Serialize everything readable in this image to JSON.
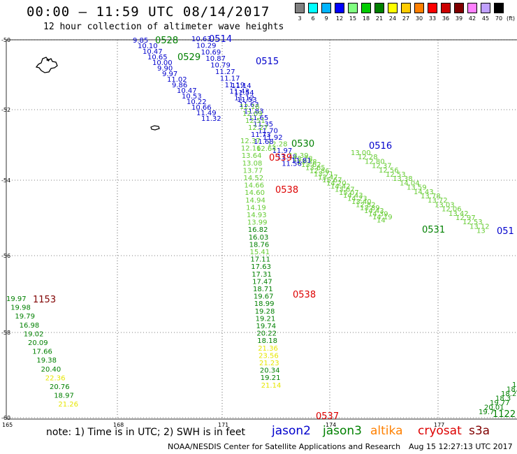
{
  "header": {
    "title": "00:00 – 11:59 UTC 08/14/2017",
    "subtitle": "12 hour collection of altimeter wave heights"
  },
  "colorbar": {
    "unit_label": "(ft)",
    "entries": [
      {
        "label": "3",
        "color": "#808080"
      },
      {
        "label": "6",
        "color": "#00ffff"
      },
      {
        "label": "9",
        "color": "#00b4ff"
      },
      {
        "label": "12",
        "color": "#0000ff"
      },
      {
        "label": "15",
        "color": "#80ff80"
      },
      {
        "label": "18",
        "color": "#00cc00"
      },
      {
        "label": "21",
        "color": "#008000"
      },
      {
        "label": "24",
        "color": "#ffff00"
      },
      {
        "label": "27",
        "color": "#ffcc00"
      },
      {
        "label": "30",
        "color": "#ff8000"
      },
      {
        "label": "33",
        "color": "#ff0000"
      },
      {
        "label": "36",
        "color": "#cc0000"
      },
      {
        "label": "39",
        "color": "#800000"
      },
      {
        "label": "42",
        "color": "#ff80ff"
      },
      {
        "label": "45",
        "color": "#c0a0ff"
      },
      {
        "label": "70",
        "color": "#000000"
      }
    ]
  },
  "axes": {
    "lat_labels": [
      "-50",
      "-52",
      "-54",
      "-56",
      "-58",
      "-60"
    ],
    "lon_labels": [
      "165",
      "168",
      "171",
      "174",
      "177"
    ]
  },
  "tracks": [
    {
      "satellite": "jason2",
      "time_label": "0514",
      "label_color": "#0000cc",
      "values": [
        {
          "v": "10.63",
          "c": "#0000cc"
        },
        {
          "v": "10.29",
          "c": "#0000cc"
        },
        {
          "v": "10.69",
          "c": "#0000cc"
        },
        {
          "v": "10.87",
          "c": "#0000cc"
        },
        {
          "v": "10.79",
          "c": "#0000cc"
        },
        {
          "v": "11.27",
          "c": "#0000cc"
        },
        {
          "v": "11.17",
          "c": "#0000cc"
        },
        {
          "v": "11.19",
          "c": "#0000cc"
        },
        {
          "v": "11.43",
          "c": "#0000cc"
        },
        {
          "v": "11.12",
          "c": "#0000cc"
        },
        {
          "v": "11.63",
          "c": "#0000cc"
        },
        {
          "v": "11.83",
          "c": "#0000cc"
        },
        {
          "v": "11.65",
          "c": "#0000cc"
        },
        {
          "v": "11.35",
          "c": "#0000cc"
        },
        {
          "v": "11.70",
          "c": "#0000cc"
        },
        {
          "v": "11.92",
          "c": "#0000cc"
        },
        {
          "v": "12.28",
          "c": "#66cc33"
        },
        {
          "v": "11.97",
          "c": "#0000cc"
        },
        {
          "v": "11.48",
          "c": "#0000cc"
        },
        {
          "v": "11.56",
          "c": "#0000cc"
        }
      ]
    },
    {
      "satellite": "jason2",
      "time_label": "0515",
      "label_color": "#0000cc",
      "values": [
        {
          "v": "11.14",
          "c": "#0000cc"
        },
        {
          "v": "11.54",
          "c": "#0000cc"
        },
        {
          "v": "11.53",
          "c": "#0000cc"
        },
        {
          "v": "12.16",
          "c": "#66cc33"
        },
        {
          "v": "12.09",
          "c": "#66cc33"
        },
        {
          "v": "12.51",
          "c": "#66cc33"
        },
        {
          "v": "12.27",
          "c": "#66cc33"
        },
        {
          "v": "11.73",
          "c": "#0000cc"
        },
        {
          "v": "11.68",
          "c": "#0000cc"
        },
        {
          "v": "12.64",
          "c": "#66cc33"
        }
      ]
    },
    {
      "satellite": "jason2",
      "time_label": "0528",
      "label_color": "#008000",
      "values": [
        {
          "v": "9.85",
          "c": "#0000cc"
        },
        {
          "v": "10.10",
          "c": "#0000cc"
        },
        {
          "v": "10.47",
          "c": "#0000cc"
        },
        {
          "v": "10.65",
          "c": "#0000cc"
        },
        {
          "v": "10.00",
          "c": "#0000cc"
        },
        {
          "v": "9.90",
          "c": "#0000cc"
        },
        {
          "v": "9.97",
          "c": "#0000cc"
        },
        {
          "v": "11.02",
          "c": "#0000cc"
        },
        {
          "v": "9.86",
          "c": "#0000cc"
        },
        {
          "v": "10.47",
          "c": "#0000cc"
        },
        {
          "v": "10.53",
          "c": "#0000cc"
        },
        {
          "v": "10.22",
          "c": "#0000cc"
        },
        {
          "v": "10.66",
          "c": "#0000cc"
        },
        {
          "v": "11.49",
          "c": "#0000cc"
        },
        {
          "v": "11.32",
          "c": "#0000cc"
        }
      ]
    },
    {
      "satellite": "jason2",
      "time_label": "0529",
      "label_color": "#008000",
      "values": []
    },
    {
      "satellite": "jason3",
      "time_label": "0530",
      "label_color": "#008000",
      "values": [
        {
          "v": "12.37",
          "c": "#66cc33"
        },
        {
          "v": "12.16",
          "c": "#66cc33"
        },
        {
          "v": "13.64",
          "c": "#66cc33"
        },
        {
          "v": "13.08",
          "c": "#66cc33"
        },
        {
          "v": "13.77",
          "c": "#66cc33"
        },
        {
          "v": "14.52",
          "c": "#66cc33"
        },
        {
          "v": "14.66",
          "c": "#66cc33"
        },
        {
          "v": "14.60",
          "c": "#66cc33"
        },
        {
          "v": "14.94",
          "c": "#66cc33"
        },
        {
          "v": "14.19",
          "c": "#66cc33"
        },
        {
          "v": "14.93",
          "c": "#66cc33"
        },
        {
          "v": "13.99",
          "c": "#66cc33"
        },
        {
          "v": "16.82",
          "c": "#008000"
        },
        {
          "v": "16.03",
          "c": "#008000"
        },
        {
          "v": "18.76",
          "c": "#008000"
        },
        {
          "v": "15.41",
          "c": "#66cc33"
        },
        {
          "v": "17.11",
          "c": "#008000"
        },
        {
          "v": "17.63",
          "c": "#008000"
        },
        {
          "v": "17.31",
          "c": "#008000"
        },
        {
          "v": "17.47",
          "c": "#008000"
        },
        {
          "v": "18.71",
          "c": "#008000"
        },
        {
          "v": "19.67",
          "c": "#008000"
        },
        {
          "v": "18.99",
          "c": "#008000"
        },
        {
          "v": "19.28",
          "c": "#008000"
        },
        {
          "v": "19.21",
          "c": "#008000"
        },
        {
          "v": "19.74",
          "c": "#008000"
        },
        {
          "v": "20.22",
          "c": "#008000"
        },
        {
          "v": "18.18",
          "c": "#008000"
        },
        {
          "v": "21.36",
          "c": "#e6e600"
        },
        {
          "v": "23.56",
          "c": "#e6e600"
        },
        {
          "v": "21.23",
          "c": "#e6e600"
        },
        {
          "v": "20.34",
          "c": "#008000"
        },
        {
          "v": "19.21",
          "c": "#008000"
        },
        {
          "v": "21.14",
          "c": "#e6e600"
        }
      ]
    },
    {
      "satellite": "jason3",
      "time_label": "0516",
      "label_color": "#0000cc",
      "values": [
        {
          "v": "13.39",
          "c": "#66cc33"
        },
        {
          "v": "13.28",
          "c": "#66cc33"
        },
        {
          "v": "13.38",
          "c": "#66cc33"
        },
        {
          "v": "13.62",
          "c": "#66cc33"
        },
        {
          "v": "13.65",
          "c": "#66cc33"
        },
        {
          "v": "12.86",
          "c": "#66cc33"
        },
        {
          "v": "13.71",
          "c": "#66cc33"
        },
        {
          "v": "13.47",
          "c": "#66cc33"
        },
        {
          "v": "15.67",
          "c": "#66cc33"
        },
        {
          "v": "14.20",
          "c": "#66cc33"
        },
        {
          "v": "14.42",
          "c": "#66cc33"
        },
        {
          "v": "13.67",
          "c": "#66cc33"
        },
        {
          "v": "15.07",
          "c": "#66cc33"
        },
        {
          "v": "14.43",
          "c": "#66cc33"
        },
        {
          "v": "14.23",
          "c": "#66cc33"
        },
        {
          "v": "13.40",
          "c": "#66cc33"
        },
        {
          "v": "12.82",
          "c": "#66cc33"
        },
        {
          "v": "13.89",
          "c": "#66cc33"
        },
        {
          "v": "14.43",
          "c": "#66cc33"
        },
        {
          "v": "14.39",
          "c": "#66cc33"
        },
        {
          "v": "14.19",
          "c": "#66cc33"
        },
        {
          "v": "14",
          "c": "#66cc33"
        }
      ]
    },
    {
      "satellite": "jason3",
      "time_label": "0531",
      "label_color": "#008000",
      "values": [
        {
          "v": "13.00",
          "c": "#66cc33"
        },
        {
          "v": "12.28",
          "c": "#66cc33"
        },
        {
          "v": "12.80",
          "c": "#66cc33"
        },
        {
          "v": "12.37",
          "c": "#66cc33"
        },
        {
          "v": "12.56",
          "c": "#66cc33"
        },
        {
          "v": "12.53",
          "c": "#66cc33"
        },
        {
          "v": "13.38",
          "c": "#66cc33"
        },
        {
          "v": "14.04",
          "c": "#66cc33"
        },
        {
          "v": "13.59",
          "c": "#66cc33"
        },
        {
          "v": "14.43",
          "c": "#66cc33"
        },
        {
          "v": "13.78",
          "c": "#66cc33"
        },
        {
          "v": "13.72",
          "c": "#66cc33"
        },
        {
          "v": "13.03",
          "c": "#66cc33"
        },
        {
          "v": "12.06",
          "c": "#66cc33"
        },
        {
          "v": "13.42",
          "c": "#66cc33"
        },
        {
          "v": "12.97",
          "c": "#66cc33"
        },
        {
          "v": "12.53",
          "c": "#66cc33"
        },
        {
          "v": "13.12",
          "c": "#66cc33"
        },
        {
          "v": "13",
          "c": "#66cc33"
        }
      ]
    },
    {
      "satellite": "jason2",
      "time_label": "051",
      "label_color": "#0000cc",
      "values": []
    },
    {
      "satellite": "cryosat",
      "time_label": "0539",
      "label_color": "#dd0000",
      "values": [
        {
          "v": "11.81",
          "c": "#0000cc"
        }
      ]
    },
    {
      "satellite": "cryosat",
      "time_label": "0538",
      "label_color": "#dd0000",
      "values": []
    },
    {
      "satellite": "cryosat",
      "time_label": "0538",
      "label_color": "#dd0000",
      "values": []
    },
    {
      "satellite": "cryosat",
      "time_label": "0537",
      "label_color": "#dd0000",
      "values": []
    },
    {
      "satellite": "s3a",
      "time_label": "1153",
      "label_color": "#800000",
      "values": [
        {
          "v": "19.97",
          "c": "#008000"
        },
        {
          "v": "19.98",
          "c": "#008000"
        },
        {
          "v": "19.79",
          "c": "#008000"
        },
        {
          "v": "16.98",
          "c": "#008000"
        },
        {
          "v": "19.02",
          "c": "#008000"
        },
        {
          "v": "20.09",
          "c": "#008000"
        },
        {
          "v": "17.66",
          "c": "#008000"
        },
        {
          "v": "19.38",
          "c": "#008000"
        },
        {
          "v": "20.40",
          "c": "#008000"
        },
        {
          "v": "22.36",
          "c": "#e6e600"
        },
        {
          "v": "20.76",
          "c": "#008000"
        },
        {
          "v": "18.97",
          "c": "#008000"
        },
        {
          "v": "21.26",
          "c": "#e6e600"
        }
      ]
    },
    {
      "satellite": "s3a",
      "time_label": "1122",
      "label_color": "#008000",
      "values": [
        {
          "v": "1",
          "c": "#008000"
        },
        {
          "v": "18.5",
          "c": "#008000"
        },
        {
          "v": "18.2",
          "c": "#008000"
        },
        {
          "v": "18.3",
          "c": "#008000"
        },
        {
          "v": "19.77",
          "c": "#008000"
        },
        {
          "v": "20.01",
          "c": "#008000"
        },
        {
          "v": "19.7",
          "c": "#008000"
        }
      ]
    }
  ],
  "footer": {
    "note": "note: 1) Time is in UTC; 2) SWH is in feet",
    "satellites": [
      {
        "name": "jason2",
        "color": "#0000cc"
      },
      {
        "name": "jason3",
        "color": "#008000"
      },
      {
        "name": "altika",
        "color": "#ff8000"
      },
      {
        "name": "cryosat",
        "color": "#dd0000"
      },
      {
        "name": "s3a",
        "color": "#800000"
      }
    ],
    "credit": "NOAA/NESDIS Center for Satellite Applications and Research",
    "timestamp": "Aug 15 12:27:13 UTC 2017"
  }
}
